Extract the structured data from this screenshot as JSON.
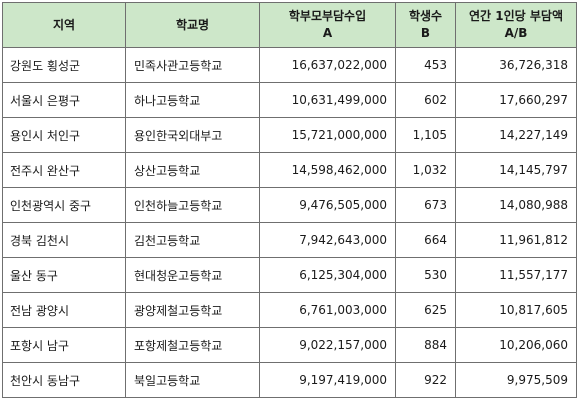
{
  "headers": {
    "region": "지역",
    "school": "학교명",
    "income": {
      "line1": "학부모부담수입",
      "line2": "A"
    },
    "students": {
      "line1": "학생수",
      "line2": "B"
    },
    "per_student": {
      "line1": "연간 1인당 부담액",
      "line2": "A/B"
    }
  },
  "rows": [
    {
      "region": "강원도 횡성군",
      "school": "민족사관고등학교",
      "income": "16,637,022,000",
      "students": "453",
      "per_student": "36,726,318"
    },
    {
      "region": "서울시 은평구",
      "school": "하나고등학교",
      "income": "10,631,499,000",
      "students": "602",
      "per_student": "17,660,297"
    },
    {
      "region": "용인시 처인구",
      "school": "용인한국외대부고",
      "income": "15,721,000,000",
      "students": "1,105",
      "per_student": "14,227,149"
    },
    {
      "region": "전주시 완산구",
      "school": "상산고등학교",
      "income": "14,598,462,000",
      "students": "1,032",
      "per_student": "14,145,797"
    },
    {
      "region": "인천광역시 중구",
      "school": "인천하늘고등학교",
      "income": "9,476,505,000",
      "students": "673",
      "per_student": "14,080,988"
    },
    {
      "region": "경북 김천시",
      "school": "김천고등학교",
      "income": "7,942,643,000",
      "students": "664",
      "per_student": "11,961,812"
    },
    {
      "region": "울산 동구",
      "school": "현대청운고등학교",
      "income": "6,125,304,000",
      "students": "530",
      "per_student": "11,557,177"
    },
    {
      "region": "전남 광양시",
      "school": "광양제철고등학교",
      "income": "6,761,003,000",
      "students": "625",
      "per_student": "10,817,605"
    },
    {
      "region": "포항시 남구",
      "school": "포항제철고등학교",
      "income": "9,022,157,000",
      "students": "884",
      "per_student": "10,206,060"
    },
    {
      "region": "천안시 동남구",
      "school": "북일고등학교",
      "income": "9,197,419,000",
      "students": "922",
      "per_student": "9,975,509"
    }
  ]
}
